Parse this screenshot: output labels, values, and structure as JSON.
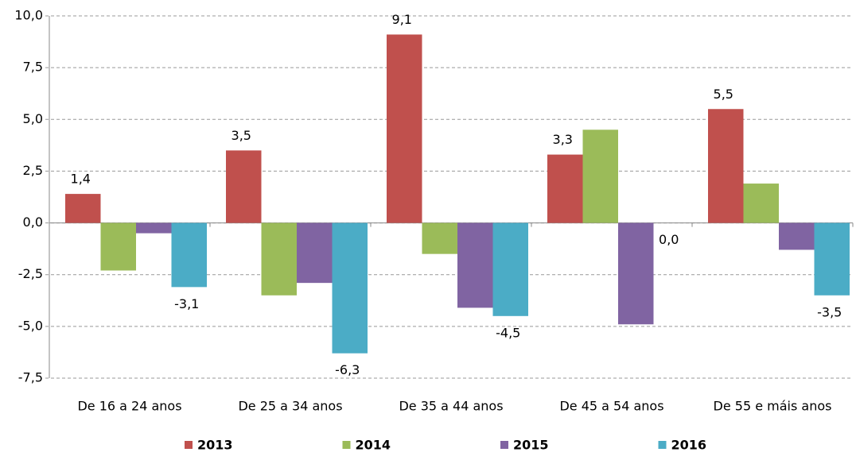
{
  "chart_data": {
    "type": "bar",
    "categories": [
      "De 16 a 24 anos",
      "De 25 a 34 anos",
      "De 35 a 44 anos",
      "De 45 a 54 anos",
      "De 55 e máis anos"
    ],
    "series": [
      {
        "name": "2013",
        "color": "#c0504d",
        "values": [
          1.4,
          3.5,
          9.1,
          3.3,
          5.5
        ],
        "value_labels": [
          "1,4",
          "3,5",
          "9,1",
          "3,3",
          "5,5"
        ]
      },
      {
        "name": "2014",
        "color": "#9bbb59",
        "values": [
          -2.3,
          -3.5,
          -1.5,
          4.5,
          1.9
        ]
      },
      {
        "name": "2015",
        "color": "#8064a2",
        "values": [
          -0.5,
          -2.9,
          -4.1,
          -4.9,
          -1.3
        ]
      },
      {
        "name": "2016",
        "color": "#4bacc6",
        "values": [
          -3.1,
          -6.3,
          -4.5,
          0.0,
          -3.5
        ],
        "value_labels": [
          "-3,1",
          "-6,3",
          "-4,5",
          "0,0",
          "-3,5"
        ]
      }
    ],
    "ylim": [
      -7.5,
      10
    ],
    "yticks": [
      {
        "value": -7.5,
        "label": "-7,5"
      },
      {
        "value": -5,
        "label": "-5,0"
      },
      {
        "value": -2.5,
        "label": "-2,5"
      },
      {
        "value": 0,
        "label": "0,0"
      },
      {
        "value": 2.5,
        "label": "2,5"
      },
      {
        "value": 5,
        "label": "5,0"
      },
      {
        "value": 7.5,
        "label": "7,5"
      },
      {
        "value": 10,
        "label": "10,0"
      }
    ],
    "grid": true,
    "legend": "bottom"
  }
}
